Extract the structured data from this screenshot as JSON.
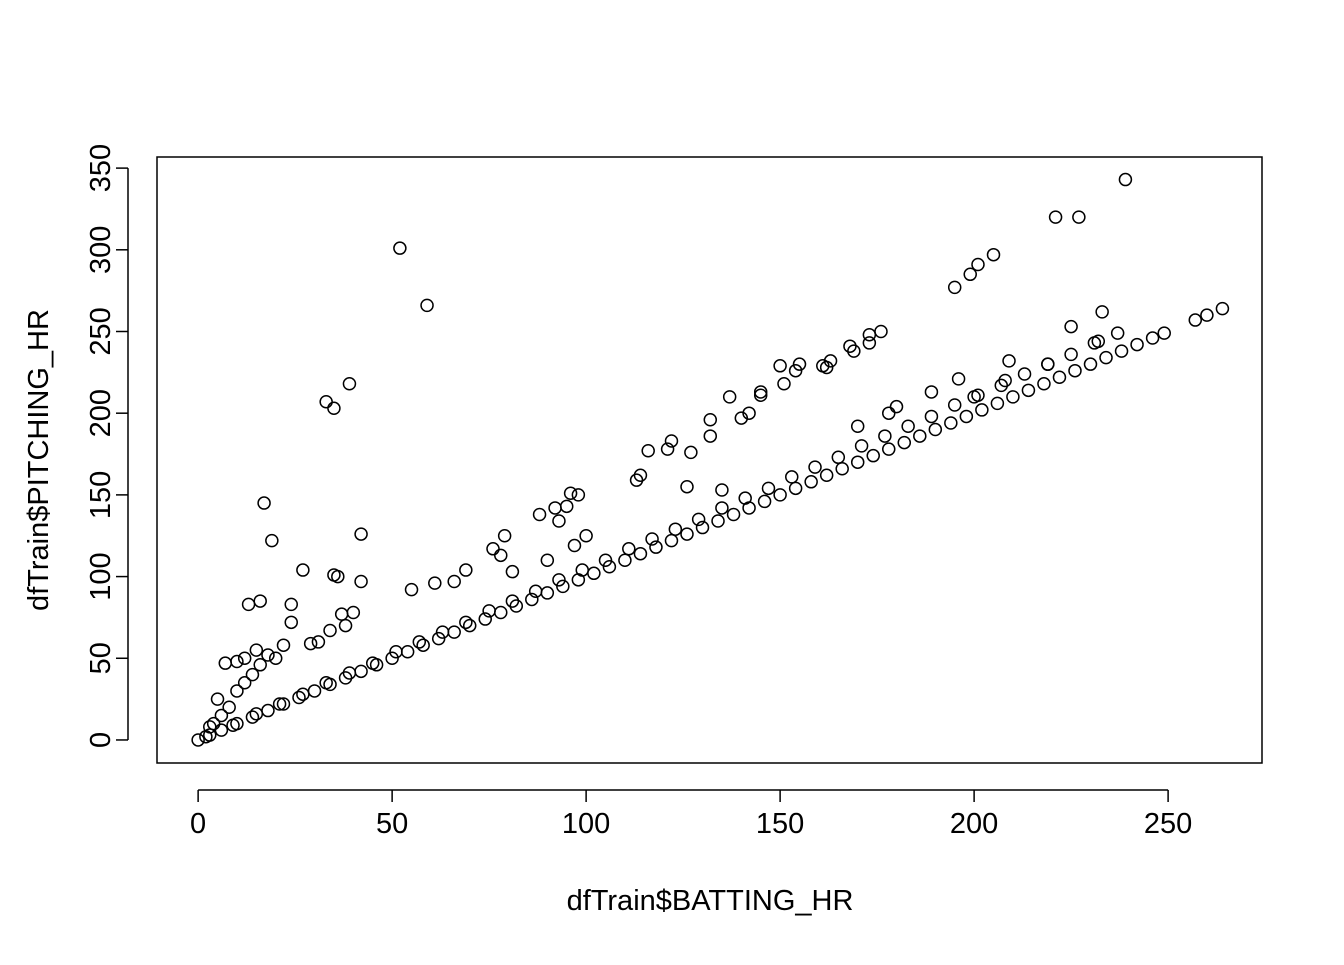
{
  "chart_data": {
    "type": "scatter",
    "xlabel": "dfTrain$BATTING_HR",
    "ylabel": "dfTrain$PITCHING_HR",
    "color": "#000000",
    "xlim": [
      -10.6,
      274.2
    ],
    "ylim": [
      -14.1,
      356.8
    ],
    "xticks": [
      0,
      50,
      100,
      150,
      200,
      250
    ],
    "yticks": [
      0,
      50,
      100,
      150,
      200,
      250,
      300,
      350
    ],
    "x": [
      0,
      52,
      59,
      239,
      221,
      227,
      33,
      35,
      39,
      17,
      19,
      42,
      36,
      35,
      42,
      27,
      13,
      16,
      24,
      24,
      7,
      10,
      12,
      15,
      195,
      199,
      201,
      205,
      233,
      225,
      264,
      260,
      257,
      249,
      176,
      173,
      173,
      168,
      169,
      163,
      161,
      162,
      155,
      150,
      154,
      151,
      145,
      145,
      140,
      142,
      137,
      132,
      132,
      122,
      121,
      116,
      127,
      114,
      113,
      126,
      96,
      98,
      95,
      92,
      88,
      93,
      100,
      97,
      79,
      76,
      78,
      81,
      69,
      66,
      61,
      55,
      90,
      135,
      170,
      180,
      178,
      189,
      196,
      209,
      219,
      232,
      208,
      200,
      40,
      37,
      38,
      34,
      29,
      31,
      22,
      20,
      18,
      5,
      8,
      3,
      4,
      6,
      10,
      12,
      14,
      16,
      2,
      6,
      10,
      14,
      18,
      22,
      26,
      30,
      34,
      38,
      42,
      46,
      50,
      54,
      58,
      62,
      66,
      70,
      74,
      78,
      82,
      86,
      90,
      94,
      98,
      102,
      106,
      110,
      114,
      118,
      122,
      126,
      130,
      134,
      138,
      142,
      146,
      150,
      154,
      158,
      162,
      166,
      170,
      174,
      178,
      182,
      186,
      190,
      194,
      198,
      202,
      206,
      210,
      214,
      218,
      222,
      226,
      230,
      234,
      238,
      242,
      246,
      3,
      9,
      15,
      21,
      27,
      33,
      39,
      45,
      51,
      57,
      63,
      69,
      75,
      81,
      87,
      93,
      99,
      105,
      111,
      117,
      123,
      129,
      135,
      141,
      147,
      153,
      159,
      165,
      171,
      177,
      183,
      189,
      195,
      201,
      207,
      213,
      219,
      225,
      231,
      237
    ],
    "values": [
      0,
      301,
      266,
      343,
      320,
      320,
      207,
      203,
      218,
      145,
      122,
      126,
      100,
      101,
      97,
      104,
      83,
      85,
      83,
      72,
      47,
      48,
      50,
      55,
      277,
      285,
      291,
      297,
      262,
      253,
      264,
      260,
      257,
      249,
      250,
      248,
      243,
      241,
      238,
      232,
      229,
      228,
      230,
      229,
      226,
      218,
      213,
      211,
      197,
      200,
      210,
      196,
      186,
      183,
      178,
      177,
      176,
      162,
      159,
      155,
      151,
      150,
      143,
      142,
      138,
      134,
      125,
      119,
      125,
      117,
      113,
      103,
      104,
      97,
      96,
      92,
      110,
      153,
      192,
      204,
      200,
      213,
      221,
      232,
      230,
      244,
      220,
      210,
      78,
      77,
      70,
      67,
      59,
      60,
      58,
      50,
      52,
      25,
      20,
      8,
      10,
      15,
      30,
      35,
      40,
      46,
      2,
      6,
      10,
      14,
      18,
      22,
      26,
      30,
      34,
      38,
      42,
      46,
      50,
      54,
      58,
      62,
      66,
      70,
      74,
      78,
      82,
      86,
      90,
      94,
      98,
      102,
      106,
      110,
      114,
      118,
      122,
      126,
      130,
      134,
      138,
      142,
      146,
      150,
      154,
      158,
      162,
      166,
      170,
      174,
      178,
      182,
      186,
      190,
      194,
      198,
      202,
      206,
      210,
      214,
      218,
      222,
      226,
      230,
      234,
      238,
      242,
      246,
      3,
      9,
      16,
      22,
      28,
      35,
      41,
      47,
      54,
      60,
      66,
      72,
      79,
      85,
      91,
      98,
      104,
      110,
      117,
      123,
      129,
      135,
      142,
      148,
      154,
      161,
      167,
      173,
      180,
      186,
      192,
      198,
      205,
      211,
      217,
      224,
      230,
      236,
      243,
      249
    ]
  }
}
